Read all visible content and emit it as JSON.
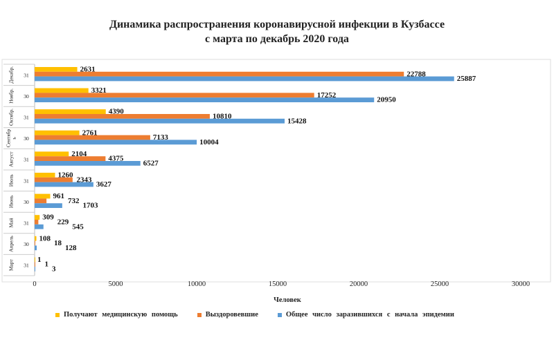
{
  "chart_data": {
    "type": "bar",
    "orientation": "horizontal",
    "title": "Динамика распространения коронавирусной инфекции в Кузбассе",
    "subtitle": "с марта по декабрь 2020 года",
    "xlabel": "Человек",
    "xlim": [
      0,
      30000
    ],
    "xticks": [
      0,
      5000,
      10000,
      15000,
      20000,
      25000,
      30000
    ],
    "categories": [
      {
        "month": "Декабр.",
        "days": "31"
      },
      {
        "month": "Ноябр.",
        "days": "30"
      },
      {
        "month": "Октябр.",
        "days": "31"
      },
      {
        "month": "Сентябр ь",
        "days": "30"
      },
      {
        "month": "Август",
        "days": "31"
      },
      {
        "month": "Июль",
        "days": "31"
      },
      {
        "month": "Июнь",
        "days": "30"
      },
      {
        "month": "Май",
        "days": "31"
      },
      {
        "month": "Апрель",
        "days": "30"
      },
      {
        "month": "Март",
        "days": "31"
      }
    ],
    "series": [
      {
        "name": "Получают медицинскую помощь",
        "color": "#FFC000",
        "values": [
          2631,
          3321,
          4390,
          2761,
          2104,
          1260,
          961,
          309,
          108,
          1
        ]
      },
      {
        "name": "Выздоровевшие",
        "color": "#ED7D31",
        "values": [
          22788,
          17252,
          10810,
          7133,
          4375,
          2343,
          732,
          229,
          18,
          1
        ]
      },
      {
        "name": "Общее число заразившихся с начала эпидемии",
        "color": "#5B9BD5",
        "values": [
          25887,
          20950,
          15428,
          10004,
          6527,
          3627,
          1703,
          545,
          128,
          3
        ]
      }
    ],
    "grid": false,
    "legend": "bottom"
  }
}
